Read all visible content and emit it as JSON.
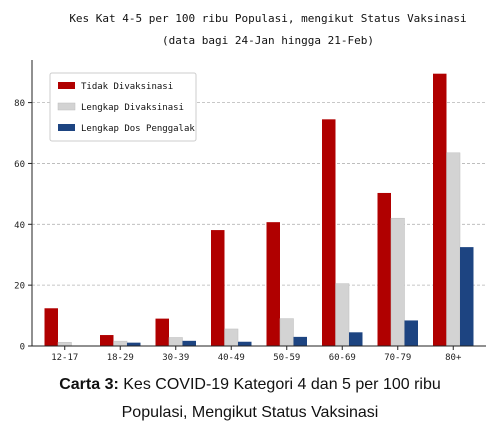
{
  "chart_data": {
    "type": "bar",
    "title": "Kes Kat 4-5 per 100 ribu Populasi, mengikut Status Vaksinasi",
    "subtitle": "(data bagi 24-Jan hingga 21-Feb)",
    "xlabel": "",
    "ylabel": "",
    "categories": [
      "12-17",
      "18-29",
      "30-39",
      "40-49",
      "50-59",
      "60-69",
      "70-79",
      "80+"
    ],
    "series": [
      {
        "name": "Tidak Divaksinasi",
        "color": "#b00000",
        "values": [
          12.4,
          3.6,
          9.0,
          38.1,
          40.7,
          74.5,
          50.3,
          89.5
        ]
      },
      {
        "name": "Lengkap Divaksinasi",
        "color": "#d3d3d3",
        "values": [
          1.2,
          1.6,
          2.8,
          5.6,
          9.0,
          20.5,
          42.0,
          63.5
        ]
      },
      {
        "name": "Lengkap Dos Penggalak",
        "color": "#1d4481",
        "values": [
          0.0,
          1.1,
          1.7,
          1.4,
          3.0,
          4.5,
          8.4,
          32.5
        ]
      }
    ],
    "yticks": [
      0,
      20,
      40,
      60,
      80
    ],
    "ylim": [
      0,
      94
    ],
    "grid": "horizontal dashed",
    "legend": "top-left"
  },
  "caption": {
    "label": "Carta 3:",
    "line1": "Kes COVID-19 Kategori 4 dan 5 per 100 ribu",
    "line2": "Populasi, Mengikut Status Vaksinasi"
  }
}
